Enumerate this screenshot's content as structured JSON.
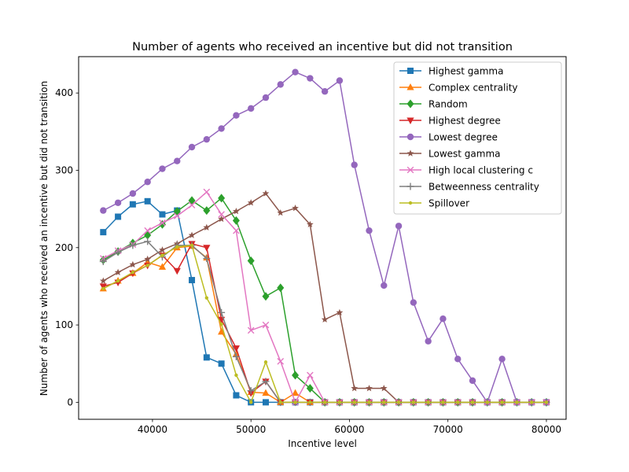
{
  "chart_data": {
    "type": "line",
    "title": "Number of agents who received an incentive but did not transition",
    "xlabel": "Incentive level",
    "ylabel": "Number of agents who received an incentive but did not transition",
    "xlim": [
      32500,
      82000
    ],
    "ylim": [
      -22,
      447
    ],
    "xticks": [
      40000,
      50000,
      60000,
      70000,
      80000
    ],
    "yticks": [
      0,
      100,
      200,
      300,
      400
    ],
    "grid": false,
    "legend_position": "top-right",
    "x": [
      35000,
      36500,
      38000,
      39500,
      41000,
      42500,
      44000,
      45500,
      47000,
      48500,
      50000,
      51500,
      53000,
      54500,
      56000,
      57500,
      59000,
      60500,
      62000,
      63500,
      65000,
      66500,
      68000,
      69500,
      71000,
      72500,
      74000,
      75500,
      77000,
      78500,
      80000
    ],
    "series": [
      {
        "name": "Highest gamma",
        "color": "#1f77b4",
        "marker": "square",
        "values": [
          220,
          240,
          256,
          260,
          243,
          248,
          158,
          58,
          50,
          9,
          0,
          0,
          0,
          0,
          0,
          0,
          0,
          0,
          0,
          0,
          0,
          0,
          0,
          0,
          0,
          0,
          0,
          0,
          0,
          0,
          0
        ]
      },
      {
        "name": "Complex centrality",
        "color": "#ff7f0e",
        "marker": "triangle-up",
        "values": [
          147,
          157,
          167,
          181,
          175,
          200,
          202,
          187,
          91,
          62,
          13,
          12,
          0,
          12,
          0,
          0,
          0,
          0,
          0,
          0,
          0,
          0,
          0,
          0,
          0,
          0,
          0,
          0,
          0,
          0,
          0
        ]
      },
      {
        "name": "Random",
        "color": "#2ca02c",
        "marker": "diamond",
        "values": [
          184,
          195,
          206,
          216,
          230,
          247,
          261,
          248,
          264,
          235,
          183,
          137,
          148,
          35,
          18,
          0,
          0,
          0,
          0,
          0,
          0,
          0,
          0,
          0,
          0,
          0,
          0,
          0,
          0,
          0,
          0
        ]
      },
      {
        "name": "Highest degree",
        "color": "#d62728",
        "marker": "triangle-down",
        "values": [
          150,
          155,
          167,
          177,
          190,
          170,
          205,
          200,
          107,
          70,
          12,
          27,
          0,
          0,
          0,
          0,
          0,
          0,
          0,
          0,
          0,
          0,
          0,
          0,
          0,
          0,
          0,
          0,
          0,
          0,
          0
        ]
      },
      {
        "name": "Lowest degree",
        "color": "#9467bd",
        "marker": "circle",
        "values": [
          248,
          258,
          270,
          285,
          302,
          312,
          330,
          340,
          354,
          371,
          380,
          394,
          411,
          427,
          419,
          402,
          416,
          307,
          222,
          151,
          228,
          129,
          79,
          108,
          56,
          28,
          0,
          56,
          0,
          0,
          0
        ]
      },
      {
        "name": "Lowest gamma",
        "color": "#8c564b",
        "marker": "star",
        "values": [
          157,
          168,
          178,
          185,
          197,
          205,
          216,
          226,
          237,
          247,
          258,
          270,
          245,
          251,
          230,
          107,
          116,
          18,
          18,
          18,
          0,
          0,
          0,
          0,
          0,
          0,
          0,
          0,
          0,
          0,
          0
        ]
      },
      {
        "name": "High local clustering c",
        "color": "#e377c2",
        "marker": "x",
        "values": [
          186,
          196,
          204,
          222,
          232,
          241,
          255,
          272,
          243,
          222,
          93,
          100,
          53,
          0,
          35,
          0,
          0,
          0,
          0,
          0,
          0,
          0,
          0,
          0,
          0,
          0,
          0,
          0,
          0,
          0,
          0
        ]
      },
      {
        "name": "Betweenness centrality",
        "color": "#7f7f7f",
        "marker": "plus",
        "values": [
          182,
          194,
          203,
          208,
          188,
          203,
          203,
          186,
          116,
          59,
          15,
          27,
          0,
          0,
          0,
          0,
          0,
          0,
          0,
          0,
          0,
          0,
          0,
          0,
          0,
          0,
          0,
          0,
          0,
          0,
          0
        ]
      },
      {
        "name": "Spillover",
        "color": "#bcbd22",
        "marker": "point",
        "values": [
          147,
          157,
          168,
          177,
          190,
          201,
          203,
          135,
          101,
          35,
          0,
          52,
          0,
          0,
          0,
          0,
          0,
          0,
          0,
          0,
          0,
          0,
          0,
          0,
          0,
          0,
          0,
          0,
          0,
          0,
          0
        ]
      }
    ]
  }
}
